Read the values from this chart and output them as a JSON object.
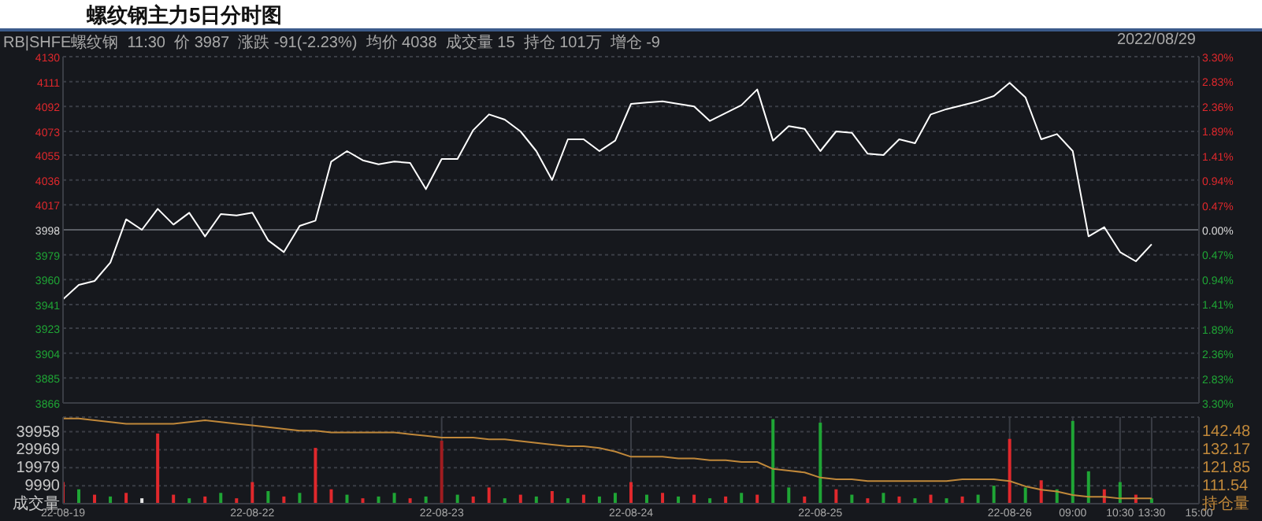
{
  "chart_data": [
    {
      "type": "line",
      "title": "螺纹钢主力5日分时图",
      "annotations": [
        "RB|SHFE螺纹钢  11:30  价 3987  涨跌 -91(-2.23%)  均价 4038  成交量 15  持仓 101万  增仓 -9",
        "2022/08/29"
      ],
      "categories": [
        null,
        null,
        null,
        null,
        null,
        null,
        null,
        null,
        null,
        null,
        null,
        null,
        null,
        null,
        null,
        null,
        null,
        null,
        null,
        null,
        null,
        null,
        null,
        null,
        null,
        null,
        null,
        null,
        null,
        null,
        null,
        null,
        null,
        null,
        null,
        null,
        null,
        null,
        null,
        null,
        null,
        null,
        null,
        null,
        null,
        null,
        null,
        null,
        null,
        null,
        null,
        null,
        null,
        null,
        null,
        null,
        null,
        null,
        null,
        null,
        null,
        null,
        null,
        null,
        null,
        null,
        null,
        null,
        null,
        null,
        null,
        null,
        null
      ],
      "series": [
        {
          "color": "#ffffff",
          "values": [
            3945,
            3956,
            3959,
            3973,
            4006,
            3998,
            4014,
            4002,
            4011,
            3993,
            4010,
            4009,
            4011,
            3990,
            3981,
            4001,
            4005,
            4050,
            4058,
            4051,
            4048,
            4050,
            4049,
            4029,
            4052,
            4052,
            4074,
            4086,
            4082,
            4073,
            4058,
            4036,
            4067,
            4067,
            4058,
            4066,
            4094,
            4095,
            4096,
            4094,
            4092,
            4081,
            4087,
            4093,
            4105,
            4066,
            4077,
            4075,
            4058,
            4073,
            4072,
            4056,
            4055,
            4067,
            4064,
            4086,
            4090,
            4093,
            4096,
            4100,
            4110,
            4099,
            4067,
            4071,
            4058,
            3993,
            4000,
            3981,
            3974,
            3987,
            null,
            null,
            null
          ]
        }
      ],
      "ylim": [
        3866,
        4130
      ],
      "yticks": [
        3866,
        3885,
        3904,
        3923,
        3941,
        3960,
        3979,
        3998,
        4017,
        4036,
        4055,
        4073,
        4092,
        4111,
        4130
      ],
      "y2lim": [
        -3.3,
        3.3
      ],
      "y2ticks": [
        {
          "value": -3.3,
          "label": "3.30%"
        },
        {
          "value": -2.83,
          "label": "2.83%"
        },
        {
          "value": -2.36,
          "label": "2.36%"
        },
        {
          "value": -1.89,
          "label": "1.89%"
        },
        {
          "value": -1.41,
          "label": "1.41%"
        },
        {
          "value": -0.94,
          "label": "0.94%"
        },
        {
          "value": -0.47,
          "label": "0.47%"
        },
        {
          "value": 0,
          "label": "0.00%"
        },
        {
          "value": 0.47,
          "label": "0.47%"
        },
        {
          "value": 0.94,
          "label": "0.94%"
        },
        {
          "value": 1.41,
          "label": "1.41%"
        },
        {
          "value": 1.89,
          "label": "1.89%"
        },
        {
          "value": 2.36,
          "label": "2.36%"
        },
        {
          "value": 2.83,
          "label": "2.83%"
        },
        {
          "value": 3.3,
          "label": "3.30%"
        }
      ],
      "ref_lines": [
        {
          "axis": "y",
          "value": 3998,
          "color": "#5a5d64"
        }
      ],
      "grid": true
    },
    {
      "type": "bar",
      "categories": [
        "22-08-19",
        null,
        null,
        null,
        null,
        null,
        null,
        null,
        null,
        null,
        null,
        null,
        "22-08-22",
        null,
        null,
        null,
        null,
        null,
        null,
        null,
        null,
        null,
        null,
        null,
        "22-08-23",
        null,
        null,
        null,
        null,
        null,
        null,
        null,
        null,
        null,
        null,
        null,
        "22-08-24",
        null,
        null,
        null,
        null,
        null,
        null,
        null,
        null,
        null,
        null,
        null,
        "22-08-25",
        null,
        null,
        null,
        null,
        null,
        null,
        null,
        null,
        null,
        null,
        null,
        "22-08-26",
        null,
        null,
        null,
        "09:00",
        null,
        null,
        "10:30",
        null,
        "13:30",
        null,
        null,
        "15:00"
      ],
      "series": [
        {
          "values": [
            12000,
            8000,
            5000,
            4000,
            6000,
            3000,
            39000,
            5000,
            3000,
            4000,
            6000,
            3000,
            12000,
            7000,
            4000,
            6000,
            31000,
            8000,
            5000,
            3000,
            4000,
            6000,
            3000,
            4000,
            35000,
            5000,
            4000,
            9000,
            3000,
            5000,
            4000,
            7000,
            3000,
            5000,
            4000,
            6000,
            12000,
            5000,
            6000,
            4000,
            5000,
            3000,
            4000,
            6000,
            5000,
            47000,
            9000,
            4000,
            45000,
            8000,
            5000,
            3000,
            6000,
            4000,
            3000,
            5000,
            3000,
            4000,
            5000,
            10000,
            36000,
            9000,
            13000,
            8000,
            46000,
            18000,
            8000,
            12000,
            5000,
            3000,
            null,
            null,
            null
          ],
          "colors": [
            "#e0282c",
            "#1fa535",
            "#e0282c",
            "#1fa535",
            "#e0282c",
            "#e8e8e8",
            "#e0282c",
            "#e0282c",
            "#1fa535",
            "#e0282c",
            "#1fa535",
            "#e0282c",
            "#e0282c",
            "#1fa535",
            "#e0282c",
            "#1fa535",
            "#e0282c",
            "#e0282c",
            "#1fa535",
            "#e0282c",
            "#1fa535",
            "#1fa535",
            "#e0282c",
            "#1fa535",
            "#a01c20",
            "#1fa535",
            "#e0282c",
            "#e0282c",
            "#1fa535",
            "#e0282c",
            "#1fa535",
            "#e0282c",
            "#1fa535",
            "#e0282c",
            "#1fa535",
            "#1fa535",
            "#e0282c",
            "#1fa535",
            "#e0282c",
            "#1fa535",
            "#e0282c",
            "#1fa535",
            "#e0282c",
            "#1fa535",
            "#e0282c",
            "#1fa535",
            "#1fa535",
            "#e0282c",
            "#1fa535",
            "#e0282c",
            "#1fa535",
            "#e0282c",
            "#1fa535",
            "#e0282c",
            "#1fa535",
            "#e0282c",
            "#1fa535",
            "#e0282c",
            "#1fa535",
            "#1fa535",
            "#e0282c",
            "#1fa535",
            "#e0282c",
            "#1fa535",
            "#1fa535",
            "#1fa535",
            "#e0282c",
            "#1fa535",
            "#e0282c",
            "#1fa535",
            "#1fa535",
            "#1fa535",
            "#1fa535"
          ]
        },
        {
          "type": "line",
          "axis": "y2",
          "color": "#c0883a",
          "values": [
            150,
            150,
            149,
            148,
            147,
            147,
            147,
            147,
            148,
            149,
            148,
            147,
            146,
            145,
            144,
            143,
            143,
            142,
            142,
            142,
            142,
            142,
            141,
            140,
            139,
            139,
            139,
            138,
            138,
            137,
            136,
            135,
            134,
            134,
            133,
            131,
            128,
            128,
            128,
            127,
            127,
            126,
            126,
            125,
            125,
            121,
            120,
            119,
            116,
            115,
            115,
            114,
            114,
            114,
            114,
            114,
            114,
            115,
            115,
            115,
            114,
            111,
            109,
            108,
            106,
            105,
            105,
            104,
            104,
            104,
            null,
            null,
            null
          ]
        }
      ],
      "ylim": [
        0,
        48100
      ],
      "yticks": [
        {
          "value": 0,
          "label": "成交量"
        },
        9990,
        19979,
        29969,
        39958
      ],
      "y2lim": [
        101,
        150.8
      ],
      "y2ticks": [
        {
          "value": 101,
          "label": "持仓量"
        },
        {
          "value": 111.54,
          "label": "111.54"
        },
        {
          "value": 121.85,
          "label": "121.85"
        },
        {
          "value": 132.17,
          "label": "132.17"
        },
        {
          "value": 142.48,
          "label": "142.48"
        }
      ],
      "grid": true
    }
  ]
}
